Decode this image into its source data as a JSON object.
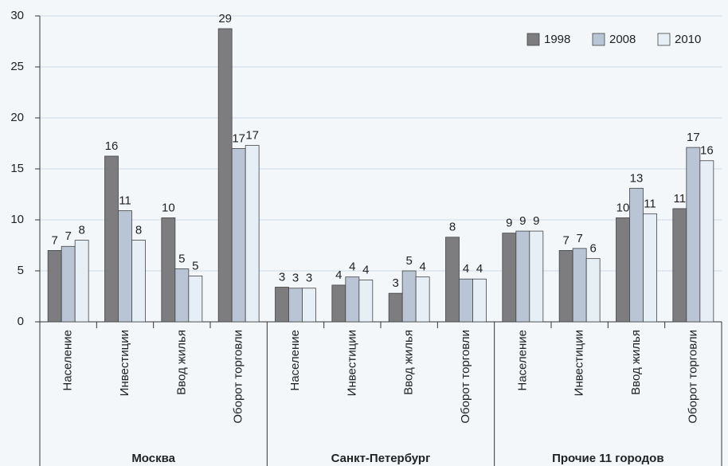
{
  "chart_data": {
    "type": "bar",
    "categories": [
      "Население",
      "Инвестиции",
      "Ввод жилья",
      "Оборот торговли",
      "Население",
      "Инвестиции",
      "Ввод жилья",
      "Оборот торговли",
      "Население",
      "Инвестиции",
      "Ввод жилья",
      "Оборот торговли"
    ],
    "groups": [
      "Москва",
      "Санкт-Петербург",
      "Прочие 11 городов"
    ],
    "series": [
      {
        "name": "1998",
        "color": "#7d7d7f",
        "values": [
          7.0,
          16.25,
          10.2,
          28.75,
          3.4,
          3.6,
          2.8,
          8.3,
          8.7,
          7.0,
          10.2,
          11.1
        ],
        "value_labels": [
          7,
          16,
          10,
          29,
          3,
          4,
          3,
          8,
          9,
          7,
          10,
          11
        ]
      },
      {
        "name": "2008",
        "color": "#b9c5d5",
        "values": [
          7.4,
          10.9,
          5.2,
          17.0,
          3.3,
          4.4,
          5.0,
          4.2,
          8.9,
          7.2,
          13.1,
          17.1
        ],
        "value_labels": [
          7,
          11,
          5,
          17,
          3,
          4,
          5,
          4,
          9,
          7,
          13,
          17
        ]
      },
      {
        "name": "2010",
        "color": "#e6eef6",
        "values": [
          8.0,
          8.0,
          4.5,
          17.3,
          3.3,
          4.1,
          4.4,
          4.2,
          8.9,
          6.2,
          10.6,
          15.8
        ],
        "value_labels": [
          8,
          8,
          5,
          17,
          3,
          4,
          4,
          4,
          9,
          6,
          11,
          16
        ]
      }
    ],
    "ylim": [
      0,
      30
    ],
    "yticks": [
      0,
      5,
      10,
      15,
      20,
      25,
      30
    ],
    "grid": true,
    "legend": "top-right"
  }
}
